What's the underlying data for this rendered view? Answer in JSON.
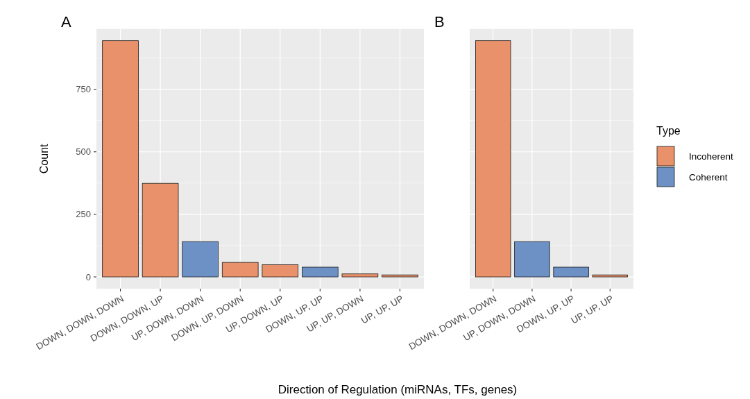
{
  "chart_data": [
    {
      "type": "bar",
      "title": "A",
      "xlabel": "Direction of Regulation (miRNAs, TFs, genes)",
      "ylabel": "Count",
      "legend_title": "Type",
      "legend": "right",
      "categories": [
        "DOWN, DOWN, DOWN",
        "DOWN, DOWN, UP",
        "UP, DOWN, DOWN",
        "DOWN, UP, DOWN",
        "UP, DOWN, UP",
        "DOWN, UP, UP",
        "UP, UP, DOWN",
        "UP, UP, UP"
      ],
      "series": [
        {
          "name": "Incoherent",
          "color": "#e8916a",
          "values": [
            944,
            374,
            null,
            58,
            49,
            null,
            12,
            8
          ]
        },
        {
          "name": "Coherent",
          "color": "#6d91c4",
          "values": [
            null,
            null,
            141,
            null,
            null,
            39,
            null,
            null
          ]
        }
      ],
      "stacked": true,
      "ylim": [
        -47,
        991
      ],
      "yticks": [
        0,
        250,
        500,
        750
      ],
      "grid": true
    },
    {
      "type": "bar",
      "title": "B",
      "categories": [
        "DOWN, DOWN, DOWN",
        "UP, DOWN, DOWN",
        "DOWN, UP, UP",
        "UP, UP, UP"
      ],
      "series": [
        {
          "color": "#e8916a",
          "values": [
            944,
            null,
            null,
            8
          ]
        },
        {
          "color": "#6d91c4",
          "values": [
            null,
            141,
            39,
            null
          ]
        }
      ],
      "stacked": true,
      "ylim": [
        -47,
        991
      ],
      "yticks": [
        0,
        250,
        500,
        750
      ],
      "grid": true,
      "tick_labels": "x"
    }
  ]
}
